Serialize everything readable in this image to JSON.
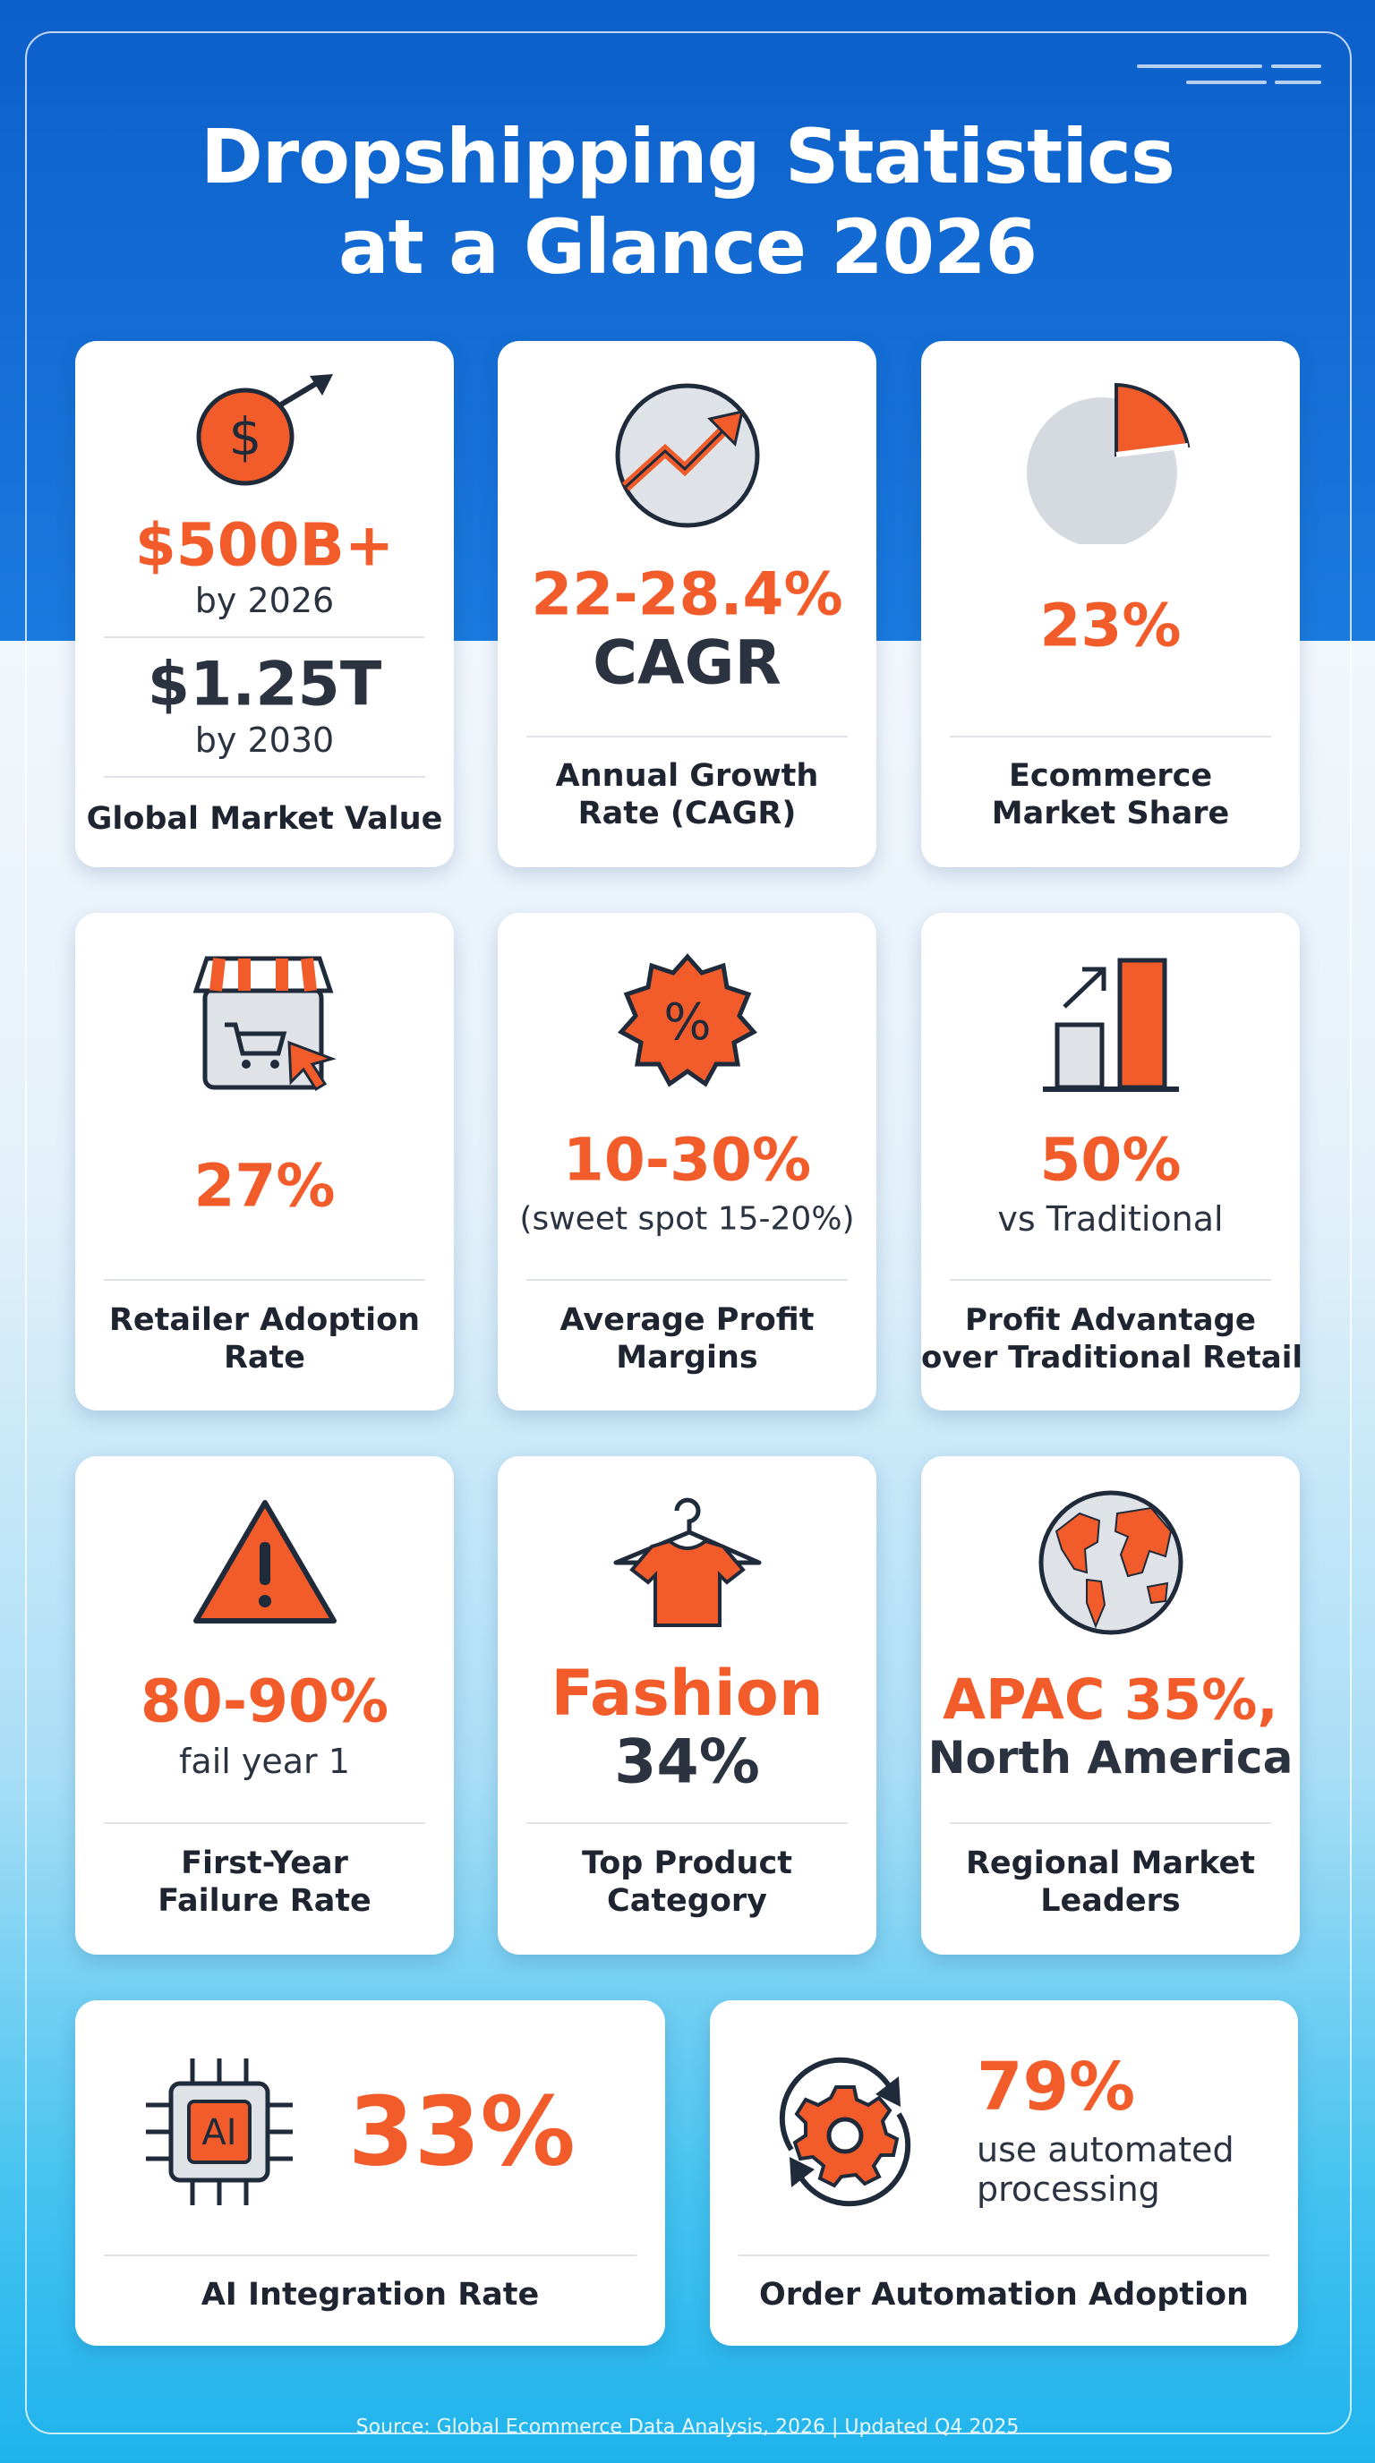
{
  "title": [
    "Dropshipping Statistics",
    "at a Glance 2026"
  ],
  "cards": [
    {
      "stats": [
        "$500B+",
        "by 2026",
        "$1.25T",
        "by 2030"
      ],
      "label": [
        "Global Market Value"
      ]
    },
    {
      "stats": [
        "22-28.4%",
        "CAGR"
      ],
      "label": [
        "Annual Growth",
        "Rate (CAGR)"
      ]
    },
    {
      "stats": [
        "23%"
      ],
      "label": [
        "Ecommerce",
        "Market Share"
      ]
    },
    {
      "stats": [
        "27%"
      ],
      "label": [
        "Retailer Adoption",
        "Rate"
      ]
    },
    {
      "stats": [
        "10-30%",
        "(sweet spot 15-20%)"
      ],
      "label": [
        "Average Profit",
        "Margins"
      ]
    },
    {
      "stats": [
        "50%",
        "vs Traditional"
      ],
      "label": [
        "Profit Advantage",
        "over Traditional Retail"
      ]
    },
    {
      "stats": [
        "80-90%",
        "fail year 1"
      ],
      "label": [
        "First-Year",
        "Failure Rate"
      ]
    },
    {
      "stats": [
        "Fashion",
        "34%"
      ],
      "label": [
        "Top Product",
        "Category"
      ]
    },
    {
      "stats": [
        "APAC 35%,",
        "North America"
      ],
      "label": [
        "Regional Market",
        "Leaders"
      ]
    },
    {
      "stats": [
        "33%"
      ],
      "label": [
        "AI Integration Rate"
      ]
    },
    {
      "stats": [
        "79%",
        "use automated",
        "processing"
      ],
      "label": [
        "Order Automation Adoption"
      ]
    }
  ],
  "source": "Source: Global Ecommerce Data Analysis, 2026 | Updated Q4 2025"
}
